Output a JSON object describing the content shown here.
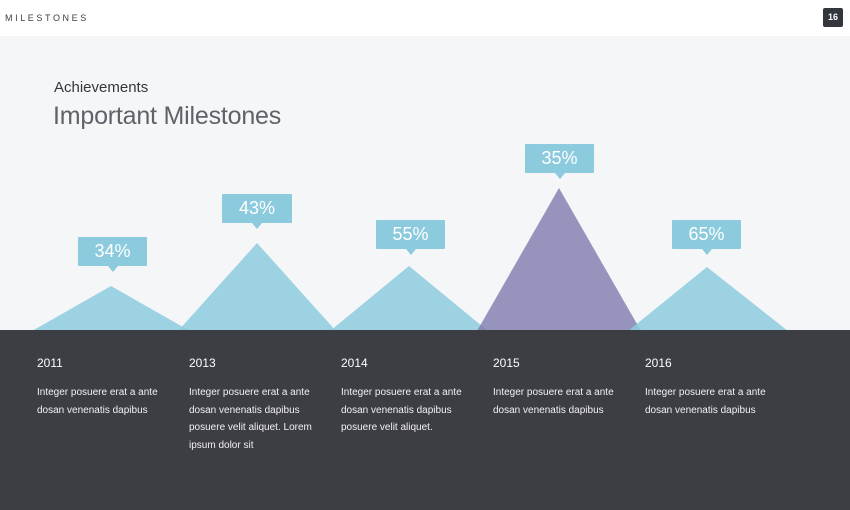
{
  "header": {
    "section": "MILESTONES",
    "page_number": "16"
  },
  "heading": {
    "subtitle": "Achievements",
    "title": "Important Milestones"
  },
  "milestones": [
    {
      "year": "2011",
      "value_label": "34%",
      "text": "Integer posuere erat a ante dosan venenatis dapibus"
    },
    {
      "year": "2013",
      "value_label": "43%",
      "text": "Integer posuere erat a ante dosan venenatis dapibus posuere velit aliquet. Lorem ipsum dolor sit"
    },
    {
      "year": "2014",
      "value_label": "55%",
      "text": "Integer posuere erat a ante dosan venenatis dapibus posuere velit aliquet."
    },
    {
      "year": "2015",
      "value_label": "35%",
      "text": "Integer posuere erat a ante dosan venenatis dapibus",
      "highlighted": true
    },
    {
      "year": "2016",
      "value_label": "65%",
      "text": "Integer posuere erat a ante dosan venenatis dapibus"
    }
  ],
  "colors": {
    "peak": "#8ccbdd",
    "peak_highlight": "#7b79ab",
    "callout": "#8ccbdd",
    "panel": "#3d3e44",
    "background": "#f4f6f8"
  }
}
